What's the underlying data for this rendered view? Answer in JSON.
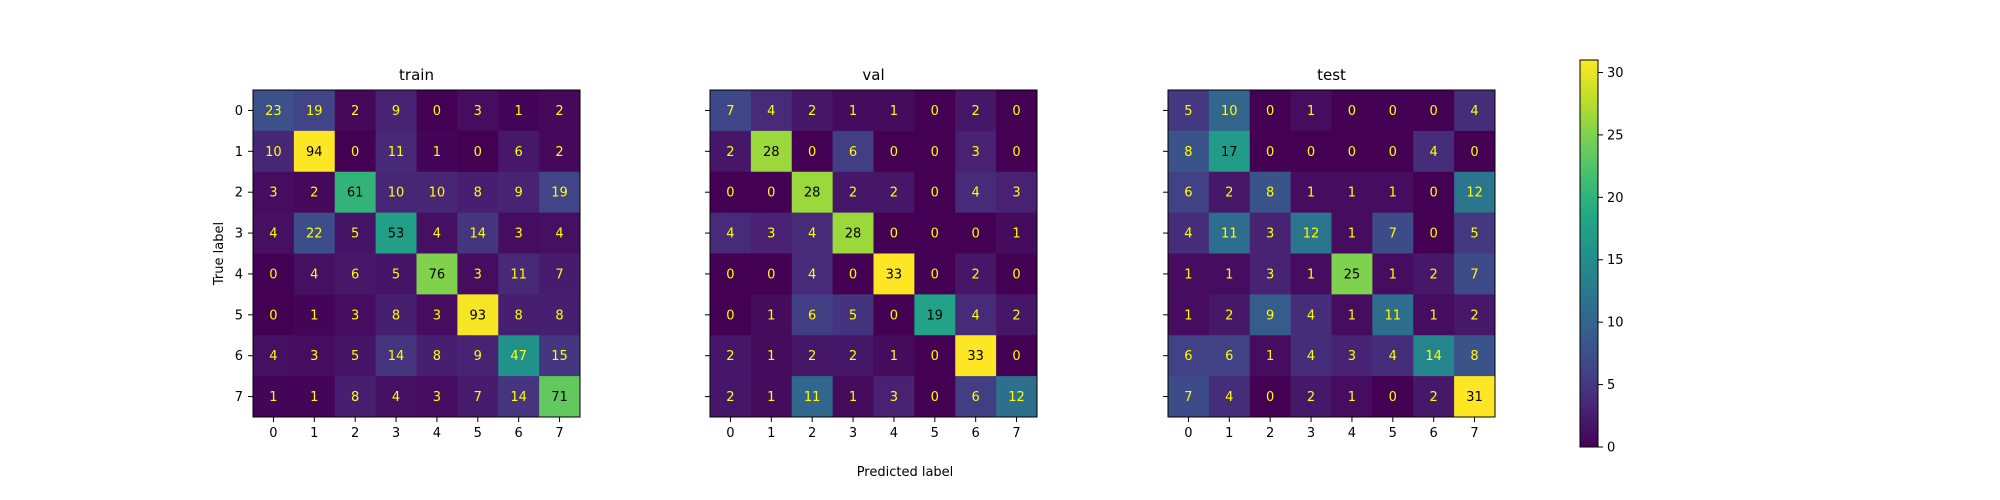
{
  "chart_data": [
    {
      "type": "heatmap",
      "title": "train",
      "x_ticks": [
        "0",
        "1",
        "2",
        "3",
        "4",
        "5",
        "6",
        "7"
      ],
      "y_ticks": [
        "0",
        "1",
        "2",
        "3",
        "4",
        "5",
        "6",
        "7"
      ],
      "ylabel": "True label",
      "matrix": [
        [
          23,
          19,
          2,
          9,
          0,
          3,
          1,
          2
        ],
        [
          10,
          94,
          0,
          11,
          1,
          0,
          6,
          2
        ],
        [
          3,
          2,
          61,
          10,
          10,
          8,
          9,
          19
        ],
        [
          4,
          22,
          5,
          53,
          4,
          14,
          3,
          4
        ],
        [
          0,
          4,
          6,
          5,
          76,
          3,
          11,
          7
        ],
        [
          0,
          1,
          3,
          8,
          3,
          93,
          8,
          8
        ],
        [
          4,
          3,
          5,
          14,
          8,
          9,
          47,
          15
        ],
        [
          1,
          1,
          8,
          4,
          3,
          7,
          14,
          71
        ]
      ]
    },
    {
      "type": "heatmap",
      "title": "val",
      "x_ticks": [
        "0",
        "1",
        "2",
        "3",
        "4",
        "5",
        "6",
        "7"
      ],
      "y_ticks": [],
      "xlabel": "Predicted label",
      "matrix": [
        [
          7,
          4,
          2,
          1,
          1,
          0,
          2,
          0
        ],
        [
          2,
          28,
          0,
          6,
          0,
          0,
          3,
          0
        ],
        [
          0,
          0,
          28,
          2,
          2,
          0,
          4,
          3
        ],
        [
          4,
          3,
          4,
          28,
          0,
          0,
          0,
          1
        ],
        [
          0,
          0,
          4,
          0,
          33,
          0,
          2,
          0
        ],
        [
          0,
          1,
          6,
          5,
          0,
          19,
          4,
          2
        ],
        [
          2,
          1,
          2,
          2,
          1,
          0,
          33,
          0
        ],
        [
          2,
          1,
          11,
          1,
          3,
          0,
          6,
          12
        ]
      ]
    },
    {
      "type": "heatmap",
      "title": "test",
      "x_ticks": [
        "0",
        "1",
        "2",
        "3",
        "4",
        "5",
        "6",
        "7"
      ],
      "y_ticks": [],
      "matrix": [
        [
          5,
          10,
          0,
          1,
          0,
          0,
          0,
          4
        ],
        [
          8,
          17,
          0,
          0,
          0,
          0,
          4,
          0
        ],
        [
          6,
          2,
          8,
          1,
          1,
          1,
          0,
          12
        ],
        [
          4,
          11,
          3,
          12,
          1,
          7,
          0,
          5
        ],
        [
          1,
          1,
          3,
          1,
          25,
          1,
          2,
          7
        ],
        [
          1,
          2,
          9,
          4,
          1,
          11,
          1,
          2
        ],
        [
          6,
          6,
          1,
          4,
          3,
          4,
          14,
          8
        ],
        [
          7,
          4,
          0,
          2,
          1,
          0,
          2,
          31
        ]
      ]
    }
  ],
  "colorbar": {
    "colormap": "viridis",
    "vmin": 0,
    "vmax": 31,
    "ticks": [
      0,
      5,
      10,
      15,
      20,
      25,
      30
    ]
  },
  "colors": {
    "text_light": "#ffff00",
    "text_dark": "#000000",
    "axis": "#000000"
  }
}
